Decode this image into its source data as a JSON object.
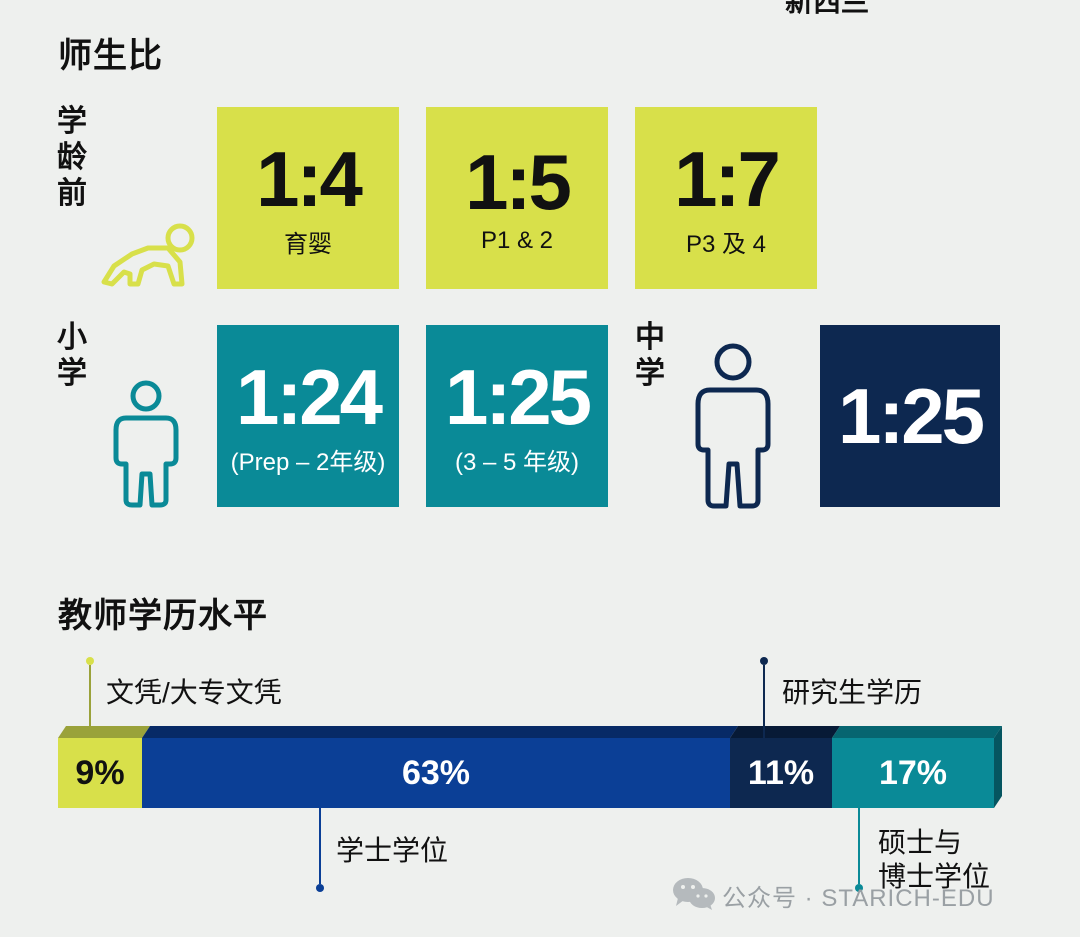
{
  "top_fragment": "新西兰",
  "ratio_section": {
    "title": "师生比",
    "preschool_label": "学龄前",
    "primary_label": "小学",
    "secondary_label": "中学",
    "preschool": [
      {
        "ratio": "1:4",
        "group": "育婴"
      },
      {
        "ratio": "1:5",
        "group": "P1 & 2"
      },
      {
        "ratio": "1:7",
        "group": "P3 及 4"
      }
    ],
    "primary": [
      {
        "ratio": "1:24",
        "group": "(Prep – 2年级)"
      },
      {
        "ratio": "1:25",
        "group": "(3 – 5 年级)"
      }
    ],
    "secondary": {
      "ratio": "1:25"
    }
  },
  "qualification_section": {
    "title": "教师学历水平",
    "segments": [
      {
        "label": "文凭/大专文凭",
        "value": "9%",
        "color": "#d8e04a"
      },
      {
        "label": "学士学位",
        "value": "63%",
        "color": "#0b3f96"
      },
      {
        "label": "研究生学历",
        "value": "11%",
        "color": "#0d2850"
      },
      {
        "label": "硕士与\n博士学位",
        "value": "17%",
        "color": "#0a8a97"
      }
    ]
  },
  "watermark": {
    "text": "公众号 · STARICH-EDU",
    "icon": "wechat-icon"
  }
}
